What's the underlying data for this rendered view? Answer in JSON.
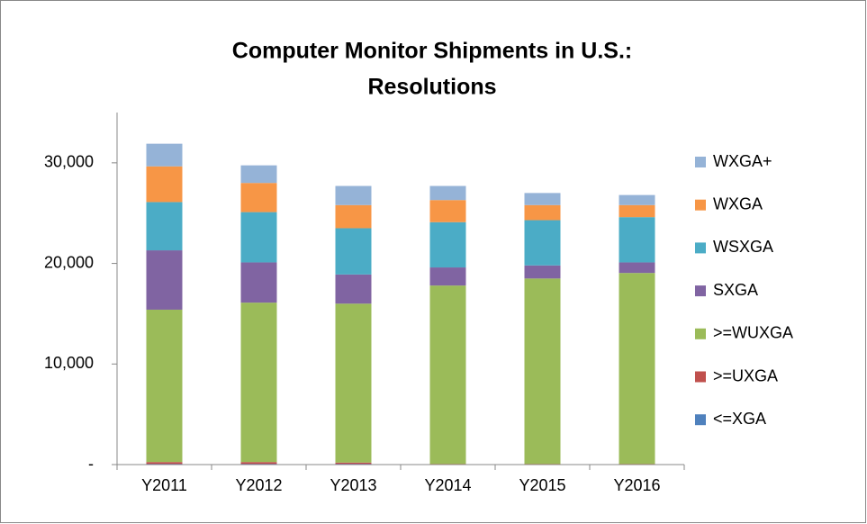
{
  "chart_data": {
    "type": "stacked_bar",
    "title": [
      "Computer Monitor Shipments in U.S.:",
      "Resolutions"
    ],
    "categories": [
      "Y2011",
      "Y2012",
      "Y2013",
      "Y2014",
      "Y2015",
      "Y2016"
    ],
    "series": [
      {
        "name": "<=XGA",
        "color": "#4f81bd",
        "values": [
          50,
          50,
          50,
          20,
          20,
          20
        ]
      },
      {
        "name": ">=UXGA",
        "color": "#c0504d",
        "values": [
          200,
          200,
          150,
          30,
          30,
          30
        ]
      },
      {
        "name": ">=WUXGA",
        "color": "#9bbb59",
        "values": [
          15150,
          15850,
          15800,
          17750,
          18450,
          19000
        ]
      },
      {
        "name": "SXGA",
        "color": "#8064a2",
        "values": [
          5900,
          4000,
          2900,
          1800,
          1300,
          1050
        ]
      },
      {
        "name": "WSXGA",
        "color": "#4bacc6",
        "values": [
          4800,
          5000,
          4600,
          4500,
          4500,
          4500
        ]
      },
      {
        "name": "WXGA",
        "color": "#f79646",
        "values": [
          3550,
          2900,
          2300,
          2200,
          1500,
          1200
        ]
      },
      {
        "name": "WXGA+",
        "color": "#95b3d7",
        "values": [
          2250,
          1750,
          1900,
          1400,
          1200,
          1000
        ]
      }
    ],
    "ylim": [
      0,
      35000
    ],
    "yticks": [
      {
        "value": 0,
        "label": "-"
      },
      {
        "value": 10000,
        "label": "10,000"
      },
      {
        "value": 20000,
        "label": "20,000"
      },
      {
        "value": 30000,
        "label": "30,000"
      }
    ],
    "legend": "right"
  }
}
